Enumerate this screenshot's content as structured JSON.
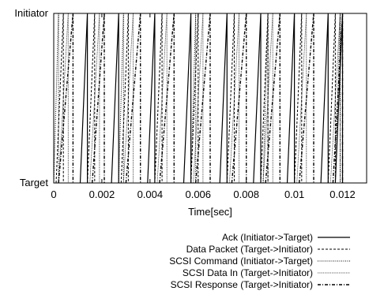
{
  "chart_data": {
    "type": "line",
    "title": "",
    "xlabel": "Time[sec]",
    "ylabel": "",
    "xlim": [
      0,
      0.013
    ],
    "ylim": [
      0,
      1
    ],
    "x_ticks": [
      "0",
      "0.002",
      "0.004",
      "0.006",
      "0.008",
      "0.01",
      "0.012"
    ],
    "x_tick_values": [
      0,
      0.002,
      0.004,
      0.006,
      0.008,
      0.01,
      0.012
    ],
    "y_ticks": [
      "Target",
      "Initiator"
    ],
    "y_tick_values": [
      0,
      1
    ],
    "grid": false,
    "legend_placement": "bottom-right (below plot)",
    "series": [
      {
        "name": "Ack (Initiator->Target)",
        "dash": "solid",
        "segments": [
          [
            0.0011,
            0.0014
          ],
          [
            0.0024,
            0.0027
          ],
          [
            0.0039,
            0.0042
          ],
          [
            0.0054,
            0.0057
          ],
          [
            0.0069,
            0.0072
          ],
          [
            0.0083,
            0.0086
          ],
          [
            0.0097,
            0.01
          ],
          [
            0.0111,
            0.0114
          ],
          [
            0.0117,
            0.012
          ]
        ]
      },
      {
        "name": "Data Packet (Target->Initiator)",
        "dash": "dashed",
        "segments": [
          [
            0.0001,
            0.0004
          ],
          [
            0.0014,
            0.0017
          ],
          [
            0.0028,
            0.0031
          ],
          [
            0.0042,
            0.0045
          ],
          [
            0.0057,
            0.006
          ],
          [
            0.0072,
            0.0075
          ],
          [
            0.0086,
            0.0089
          ],
          [
            0.01,
            0.0103
          ],
          [
            0.0114,
            0.0117
          ]
        ]
      },
      {
        "name": "SCSI Command (Initiator->Target)",
        "dash": "dotted",
        "segments": [
          [
            0.0,
            0.0002
          ],
          [
            0.0027,
            0.0029
          ],
          [
            0.0057,
            0.0059
          ],
          [
            0.0087,
            0.0089
          ],
          [
            0.0117,
            0.0119
          ]
        ]
      },
      {
        "name": "SCSI Data In (Target->Initiator)",
        "dash": "fine-dotted",
        "segments": [
          [
            0.0002,
            0.0006
          ],
          [
            0.0015,
            0.0019
          ],
          [
            0.0029,
            0.0033
          ],
          [
            0.0043,
            0.0047
          ],
          [
            0.0058,
            0.0062
          ],
          [
            0.0073,
            0.0077
          ],
          [
            0.0087,
            0.0091
          ],
          [
            0.0101,
            0.0105
          ],
          [
            0.0115,
            0.0119
          ]
        ]
      },
      {
        "name": "SCSI Response (Target->Initiator)",
        "dash": "dash-dot",
        "segments": [
          [
            0.0002,
            0.0008
          ],
          [
            0.0016,
            0.0021
          ],
          [
            0.003,
            0.0036
          ],
          [
            0.0044,
            0.005
          ],
          [
            0.0059,
            0.0065
          ],
          [
            0.0074,
            0.008
          ],
          [
            0.0088,
            0.0094
          ],
          [
            0.0102,
            0.0108
          ],
          [
            0.0116,
            0.012
          ]
        ]
      }
    ]
  }
}
